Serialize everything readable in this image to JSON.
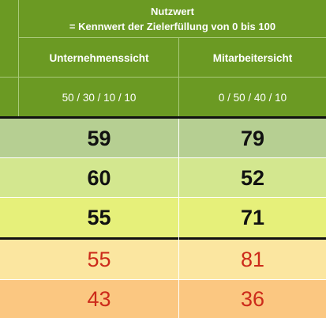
{
  "header": {
    "title_line1": "Nutzwert",
    "title_line2": "= Kennwert der Zielerfüllung von 0 bis 100",
    "columns": [
      {
        "label": "Unternehmenssicht",
        "weights": "50 / 30 / 10 / 10"
      },
      {
        "label": "Mitarbeitersicht",
        "weights": "0 / 50 / 40 / 10"
      }
    ],
    "row_marker": "<"
  },
  "rows": [
    {
      "values": [
        "59",
        "79"
      ],
      "style": "bold",
      "color": "#b6cf92"
    },
    {
      "values": [
        "60",
        "52"
      ],
      "style": "bold",
      "color": "#d3e78f"
    },
    {
      "values": [
        "55",
        "71"
      ],
      "style": "bold",
      "color": "#e6f07a"
    },
    {
      "values": [
        "55",
        "81"
      ],
      "style": "red",
      "color": "#fbe6a0"
    },
    {
      "values": [
        "43",
        "36"
      ],
      "style": "red",
      "color": "#fbc781"
    }
  ]
}
